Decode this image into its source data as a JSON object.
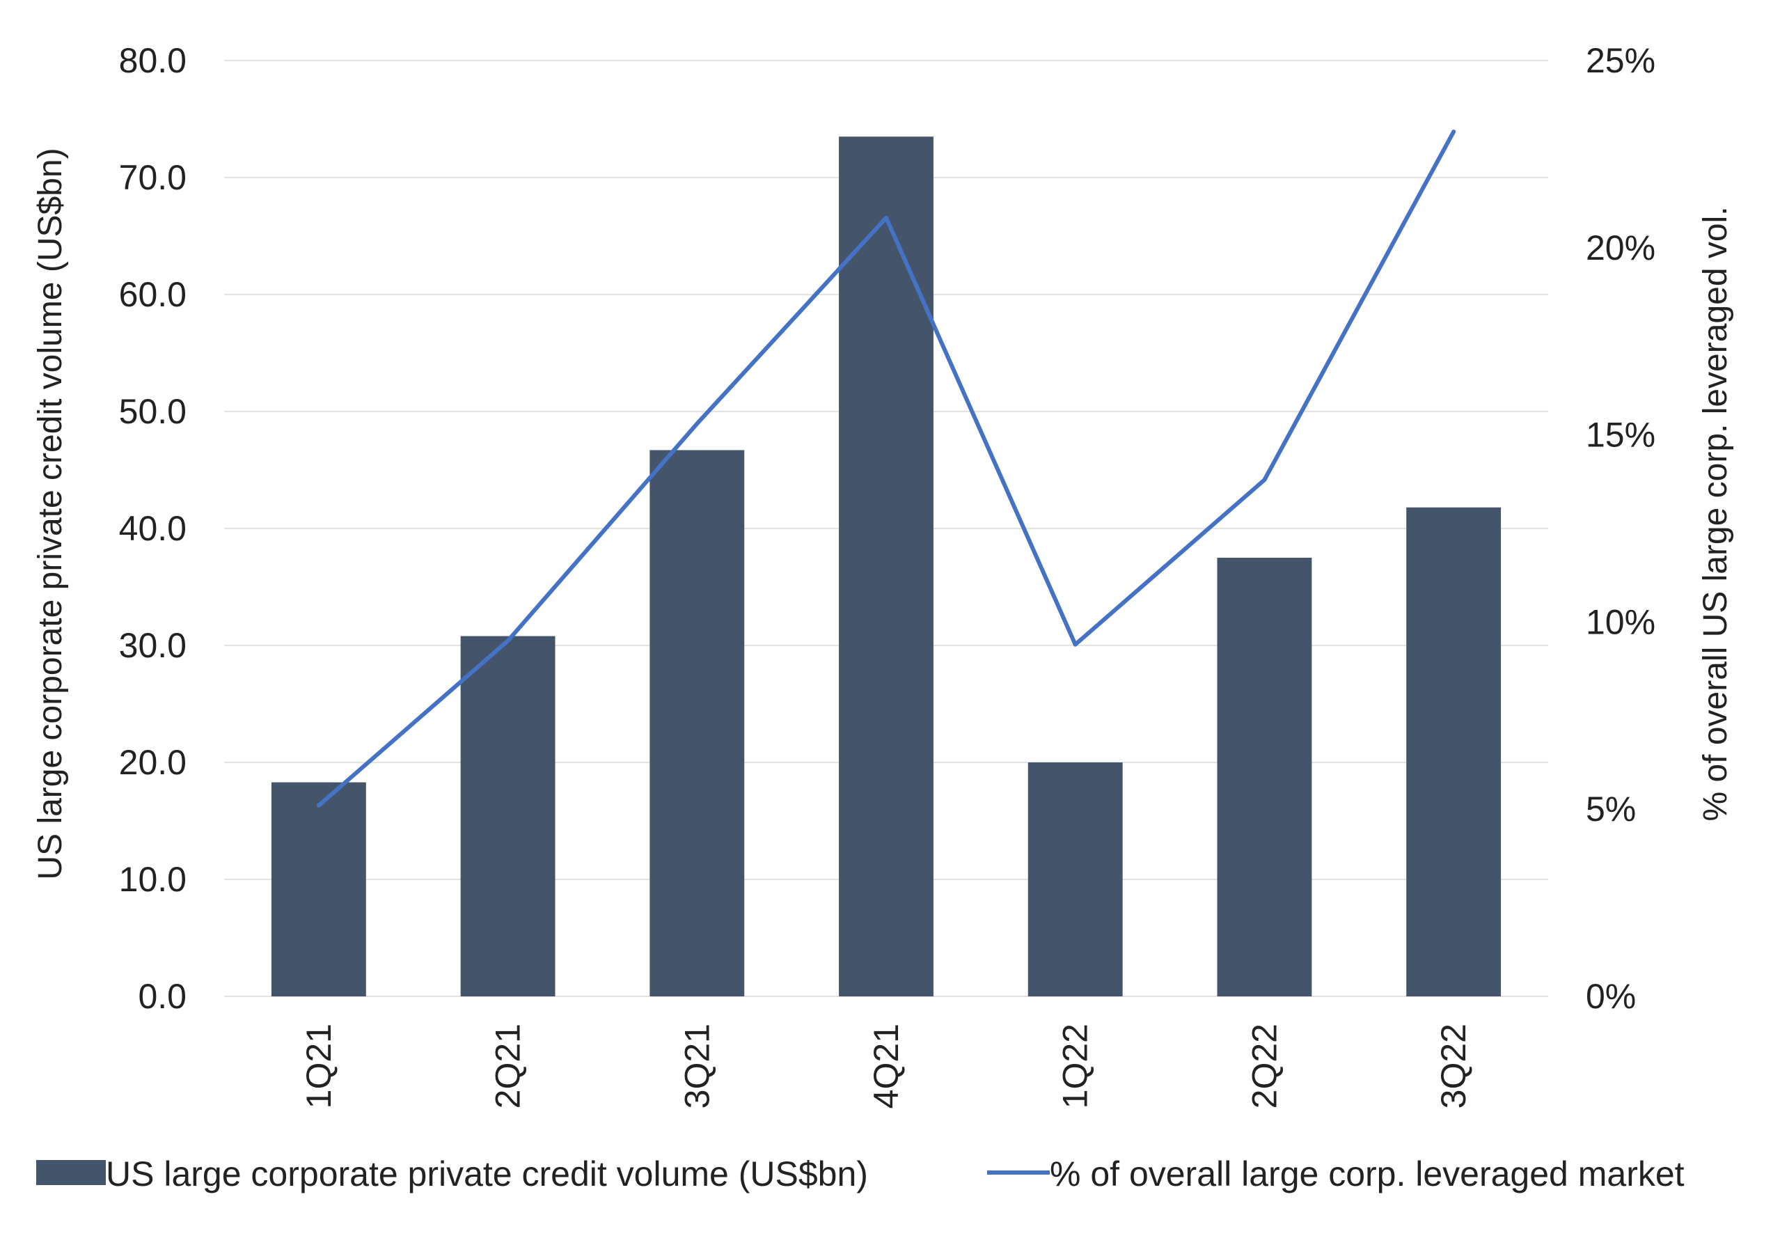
{
  "chart_data": {
    "type": "bar",
    "categories": [
      "1Q21",
      "2Q21",
      "3Q21",
      "4Q21",
      "1Q22",
      "2Q22",
      "3Q22"
    ],
    "series": [
      {
        "name": "US large corporate private credit volume (US$bn)",
        "type": "bar",
        "axis": "left",
        "values": [
          18.3,
          30.8,
          46.7,
          73.5,
          20.0,
          37.5,
          41.8
        ]
      },
      {
        "name": "% of overall large corp. leveraged market",
        "type": "line",
        "axis": "right",
        "values": [
          5.1,
          9.5,
          15.3,
          20.8,
          9.4,
          13.8,
          23.1
        ]
      }
    ],
    "ylabel": "US large corporate private credit volume (US$bn)",
    "y2label": "% of overall US large corp. leveraged vol.",
    "ylim": [
      0,
      80
    ],
    "y2lim": [
      0,
      25
    ],
    "yticks": [
      "0.0",
      "10.0",
      "20.0",
      "30.0",
      "40.0",
      "50.0",
      "60.0",
      "70.0",
      "80.0"
    ],
    "y2ticks": [
      "0%",
      "5%",
      "10%",
      "15%",
      "20%",
      "25%"
    ],
    "grid": true,
    "legend": "bottom",
    "colors": {
      "bar": "#44546A",
      "line": "#4472C4",
      "grid": "#E3E3E3"
    }
  }
}
